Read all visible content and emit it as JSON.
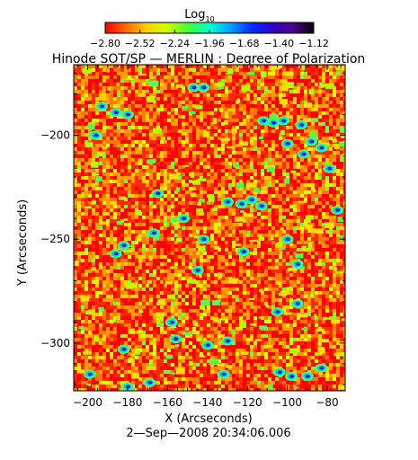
{
  "colorbar": {
    "label_main": "Log",
    "label_sub": "10",
    "ticks": [
      "-2.80",
      "-2.52",
      "-2.24",
      "-1.96",
      "-1.68",
      "-1.40",
      "-1.12"
    ],
    "colors": [
      "#ff0000",
      "#ff6a00",
      "#ffd200",
      "#c8ff00",
      "#3cff3c",
      "#00ffd2",
      "#00a0ff",
      "#0030ff",
      "#3000c8",
      "#50008c",
      "#000000"
    ]
  },
  "title": "Hinode SOT/SP — MERLIN : Degree of Polarization",
  "footer": "2—Sep—2008 20:34:06.006",
  "chart_data": {
    "type": "heatmap",
    "title": "Hinode SOT/SP — MERLIN : Degree of Polarization",
    "xlabel": "X (Arcseconds)",
    "ylabel": "Y (Arcseconds)",
    "xlim": [
      -207,
      -71
    ],
    "ylim": [
      -323,
      -166
    ],
    "xticks": [
      -200,
      -180,
      -160,
      -140,
      -120,
      -100,
      -80
    ],
    "xtick_labels": [
      "−200",
      "−180",
      "−160",
      "−140",
      "−120",
      "−100",
      "−80"
    ],
    "yticks": [
      -200,
      -250,
      -300
    ],
    "ytick_labels": [
      "−200",
      "−250",
      "−300"
    ],
    "colorscale_label": "Log10",
    "colorscale_range": [
      -2.8,
      -1.12
    ],
    "grid": false
  }
}
